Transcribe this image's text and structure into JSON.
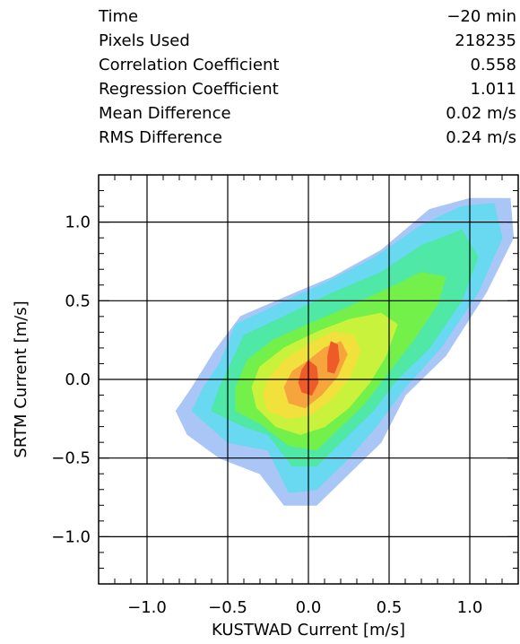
{
  "stats": [
    {
      "label": "Time",
      "value": "−20 min"
    },
    {
      "label": "Pixels Used",
      "value": "218235"
    },
    {
      "label": "Correlation Coefficient",
      "value": "0.558"
    },
    {
      "label": "Regression Coefficient",
      "value": "1.011"
    },
    {
      "label": "Mean Difference",
      "value": "0.02 m/s"
    },
    {
      "label": "RMS Difference",
      "value": "0.24 m/s"
    }
  ],
  "chart_data": {
    "type": "heatmap",
    "xlabel": "KUSTWAD Current [m/s]",
    "ylabel": "SRTM Current [m/s]",
    "xlim": [
      -1.3,
      1.3
    ],
    "ylim": [
      -1.3,
      1.3
    ],
    "x_ticks": [
      -1.0,
      -0.5,
      0.0,
      0.5,
      1.0
    ],
    "y_ticks": [
      -1.0,
      -0.5,
      0.0,
      0.5,
      1.0
    ],
    "x_tick_labels": [
      "−1.0",
      "−0.5",
      "0.0",
      "0.5",
      "1.0"
    ],
    "y_tick_labels": [
      "−1.0",
      "−0.5",
      "0.0",
      "0.5",
      "1.0"
    ],
    "grid": true,
    "colorscale": [
      "#f7c8f5",
      "#a9c6f7",
      "#68d9f1",
      "#4fe8a6",
      "#74f04a",
      "#c9f23c",
      "#f2e13d",
      "#f6a53c",
      "#ef5a2a"
    ],
    "density_levels": [
      {
        "level": 1,
        "polygon": [
          [
            -0.75,
            -0.35
          ],
          [
            -0.55,
            -0.5
          ],
          [
            -0.3,
            -0.6
          ],
          [
            -0.15,
            -0.8
          ],
          [
            0.05,
            -0.8
          ],
          [
            0.25,
            -0.6
          ],
          [
            0.45,
            -0.4
          ],
          [
            0.6,
            -0.1
          ],
          [
            0.85,
            0.15
          ],
          [
            1.1,
            0.55
          ],
          [
            1.27,
            0.9
          ],
          [
            1.25,
            1.15
          ],
          [
            1.0,
            1.15
          ],
          [
            0.75,
            1.08
          ],
          [
            0.45,
            0.82
          ],
          [
            0.15,
            0.65
          ],
          [
            -0.15,
            0.52
          ],
          [
            -0.42,
            0.4
          ],
          [
            -0.58,
            0.18
          ],
          [
            -0.72,
            -0.05
          ],
          [
            -0.82,
            -0.2
          ]
        ]
      },
      {
        "level": 2,
        "polygon": [
          [
            -0.72,
            -0.2
          ],
          [
            -0.5,
            -0.4
          ],
          [
            -0.25,
            -0.45
          ],
          [
            -0.12,
            -0.72
          ],
          [
            0.05,
            -0.7
          ],
          [
            0.25,
            -0.5
          ],
          [
            0.42,
            -0.3
          ],
          [
            0.6,
            -0.05
          ],
          [
            0.82,
            0.2
          ],
          [
            1.05,
            0.55
          ],
          [
            1.2,
            0.9
          ],
          [
            1.15,
            1.12
          ],
          [
            0.95,
            1.1
          ],
          [
            0.7,
            0.98
          ],
          [
            0.42,
            0.78
          ],
          [
            0.12,
            0.62
          ],
          [
            -0.18,
            0.48
          ],
          [
            -0.45,
            0.35
          ],
          [
            -0.55,
            0.1
          ],
          [
            -0.65,
            -0.05
          ]
        ]
      },
      {
        "level": 3,
        "polygon": [
          [
            -0.6,
            -0.2
          ],
          [
            -0.4,
            -0.3
          ],
          [
            -0.25,
            -0.35
          ],
          [
            -0.1,
            -0.55
          ],
          [
            0.05,
            -0.55
          ],
          [
            0.2,
            -0.4
          ],
          [
            0.4,
            -0.2
          ],
          [
            0.55,
            0.0
          ],
          [
            0.75,
            0.2
          ],
          [
            0.95,
            0.5
          ],
          [
            1.05,
            0.78
          ],
          [
            0.95,
            0.95
          ],
          [
            0.7,
            0.85
          ],
          [
            0.45,
            0.68
          ],
          [
            0.15,
            0.55
          ],
          [
            -0.15,
            0.4
          ],
          [
            -0.4,
            0.28
          ],
          [
            -0.48,
            0.1
          ],
          [
            -0.55,
            -0.05
          ]
        ]
      },
      {
        "level": 4,
        "polygon": [
          [
            -0.45,
            -0.2
          ],
          [
            -0.3,
            -0.28
          ],
          [
            -0.12,
            -0.42
          ],
          [
            0.05,
            -0.45
          ],
          [
            0.2,
            -0.3
          ],
          [
            0.35,
            -0.15
          ],
          [
            0.5,
            0.05
          ],
          [
            0.65,
            0.25
          ],
          [
            0.8,
            0.48
          ],
          [
            0.85,
            0.65
          ],
          [
            0.7,
            0.68
          ],
          [
            0.5,
            0.58
          ],
          [
            0.25,
            0.46
          ],
          [
            0.0,
            0.35
          ],
          [
            -0.22,
            0.25
          ],
          [
            -0.38,
            0.12
          ],
          [
            -0.45,
            -0.05
          ]
        ]
      },
      {
        "level": 5,
        "polygon": [
          [
            -0.32,
            -0.18
          ],
          [
            -0.2,
            -0.3
          ],
          [
            -0.05,
            -0.35
          ],
          [
            0.1,
            -0.3
          ],
          [
            0.25,
            -0.18
          ],
          [
            0.38,
            -0.02
          ],
          [
            0.48,
            0.15
          ],
          [
            0.55,
            0.35
          ],
          [
            0.45,
            0.42
          ],
          [
            0.25,
            0.38
          ],
          [
            0.05,
            0.3
          ],
          [
            -0.15,
            0.2
          ],
          [
            -0.3,
            0.08
          ],
          [
            -0.35,
            -0.05
          ]
        ]
      },
      {
        "level": 6,
        "polygon": [
          [
            -0.25,
            -0.2
          ],
          [
            -0.12,
            -0.25
          ],
          [
            0.02,
            -0.22
          ],
          [
            0.15,
            -0.12
          ],
          [
            0.26,
            0.02
          ],
          [
            0.32,
            0.18
          ],
          [
            0.28,
            0.28
          ],
          [
            0.15,
            0.3
          ],
          [
            0.0,
            0.22
          ],
          [
            -0.15,
            0.12
          ],
          [
            -0.25,
            0.0
          ],
          [
            -0.28,
            -0.1
          ]
        ]
      },
      {
        "level": 7,
        "polygon": [
          [
            -0.12,
            -0.15
          ],
          [
            -0.02,
            -0.18
          ],
          [
            0.08,
            -0.1
          ],
          [
            0.18,
            0.02
          ],
          [
            0.24,
            0.16
          ],
          [
            0.2,
            0.24
          ],
          [
            0.1,
            0.2
          ],
          [
            0.0,
            0.12
          ],
          [
            -0.1,
            0.05
          ],
          [
            -0.15,
            -0.05
          ]
        ]
      },
      {
        "level": 8,
        "polygon": [
          [
            -0.04,
            -0.08
          ],
          [
            0.02,
            -0.1
          ],
          [
            0.06,
            -0.02
          ],
          [
            0.05,
            0.08
          ],
          [
            0.0,
            0.12
          ],
          [
            -0.04,
            0.06
          ],
          [
            -0.06,
            -0.02
          ]
        ]
      },
      {
        "level": 8,
        "polygon": [
          [
            0.12,
            0.05
          ],
          [
            0.16,
            0.04
          ],
          [
            0.19,
            0.12
          ],
          [
            0.18,
            0.22
          ],
          [
            0.14,
            0.24
          ],
          [
            0.12,
            0.15
          ]
        ]
      }
    ]
  }
}
